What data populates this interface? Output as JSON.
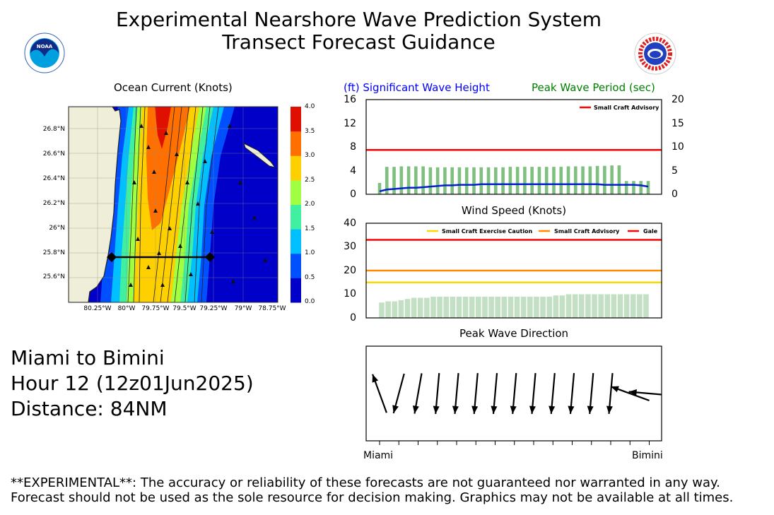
{
  "header": {
    "title_line1": "Experimental Nearshore Wave Prediction System",
    "title_line2": "Transect Forecast Guidance",
    "left_logo_text": "NOAA",
    "right_logo_text": "NATIONAL WEATHER SERVICE"
  },
  "colors": {
    "wave_height": "#0000ff",
    "wave_period": "#008000",
    "small_craft_advisory": "#ff0000",
    "wind_sca": "#ff8c00",
    "wind_scec": "#ffd700",
    "wind_gale": "#ff0000",
    "period_bars": "#7fbf7f",
    "wind_bars": "#c4e0c4"
  },
  "info": {
    "route": "Miami to Bimini",
    "hour": "Hour 12 (12z01Jun2025)",
    "distance": "Distance: 84NM"
  },
  "disclaimer": {
    "line1": "**EXPERIMENTAL**: The accuracy or reliability of these forecasts are not guaranteed nor warranted in any way.",
    "line2": "Forecast should not be used as the sole resource for decision making. Graphics may not be available at all times."
  },
  "chart_data": [
    {
      "type": "heatmap",
      "title": "Ocean Current (Knots)",
      "x_ticks": [
        "80.25°W",
        "80°W",
        "79.75°W",
        "79.5°W",
        "79.25°W",
        "79°W",
        "78.75°W"
      ],
      "y_ticks": [
        "26.8°N",
        "26.6°N",
        "26.4°N",
        "26.2°N",
        "26°N",
        "25.8°N",
        "25.6°N"
      ],
      "colorbar_ticks": [
        "4.0",
        "3.5",
        "3.0",
        "2.5",
        "2.0",
        "1.5",
        "1.0",
        "0.5",
        "0.0"
      ],
      "colorbar_colors": [
        "#0000c8",
        "#0050ff",
        "#00c0ff",
        "#40f0a0",
        "#a0ff40",
        "#ffd000",
        "#ff7000",
        "#e01000"
      ]
    },
    {
      "type": "bar",
      "title_left": "(ft) Significant Wave Height",
      "title_right": "Peak Wave Period (sec)",
      "left_ticks": [
        "16",
        "12",
        "8",
        "4",
        "0"
      ],
      "right_ticks": [
        "20",
        "15",
        "10",
        "5",
        "0"
      ],
      "ylim_left": [
        0,
        16
      ],
      "ylim_right": [
        0,
        20
      ],
      "legend": [
        "Small Craft Advisory"
      ],
      "advisory_ft": 7.5,
      "series": [
        {
          "name": "Peak Wave Period (sec)",
          "values": [
            2.4,
            5.8,
            5.8,
            5.9,
            5.9,
            5.9,
            5.9,
            5.7,
            5.7,
            5.7,
            5.7,
            5.7,
            5.7,
            5.7,
            5.7,
            5.7,
            5.7,
            5.7,
            5.8,
            5.8,
            5.8,
            5.8,
            5.8,
            5.8,
            5.8,
            5.8,
            5.9,
            5.9,
            5.9,
            5.9,
            6.0,
            6.0,
            6.1,
            6.1,
            2.8,
            2.8,
            2.8,
            2.8
          ]
        },
        {
          "name": "Significant Wave Height",
          "values": [
            0.5,
            0.8,
            0.9,
            1.0,
            1.1,
            1.1,
            1.2,
            1.3,
            1.4,
            1.5,
            1.5,
            1.6,
            1.6,
            1.6,
            1.7,
            1.7,
            1.7,
            1.7,
            1.7,
            1.7,
            1.7,
            1.7,
            1.7,
            1.7,
            1.7,
            1.7,
            1.7,
            1.7,
            1.7,
            1.7,
            1.7,
            1.6,
            1.6,
            1.6,
            1.6,
            1.6,
            1.5,
            1.3
          ]
        }
      ]
    },
    {
      "type": "bar",
      "title": "Wind Speed (Knots)",
      "y_ticks": [
        "40",
        "30",
        "20",
        "10",
        "0"
      ],
      "ylim": [
        0,
        40
      ],
      "legend": [
        "Small Craft Exercise Caution",
        "Small Craft Advisory",
        "Gale"
      ],
      "thresholds": {
        "scec": 15,
        "sca": 20,
        "gale": 33
      },
      "values": [
        6.5,
        7,
        7,
        7.5,
        8,
        8.5,
        8.5,
        8.5,
        9,
        9,
        9,
        9,
        9,
        9,
        9,
        9,
        9,
        9,
        9,
        9,
        9,
        9,
        9,
        9,
        9,
        9,
        9,
        9.5,
        9.5,
        10,
        10,
        10,
        10,
        10,
        10,
        10,
        10,
        10,
        10,
        10,
        10,
        10
      ]
    },
    {
      "type": "scatter",
      "title": "Peak Wave Direction",
      "x_start_label": "Miami",
      "x_end_label": "Bimini",
      "arrow_angles_deg": [
        -20,
        195,
        190,
        185,
        185,
        185,
        185,
        185,
        185,
        185,
        185,
        185,
        185,
        -70,
        -85
      ]
    }
  ]
}
